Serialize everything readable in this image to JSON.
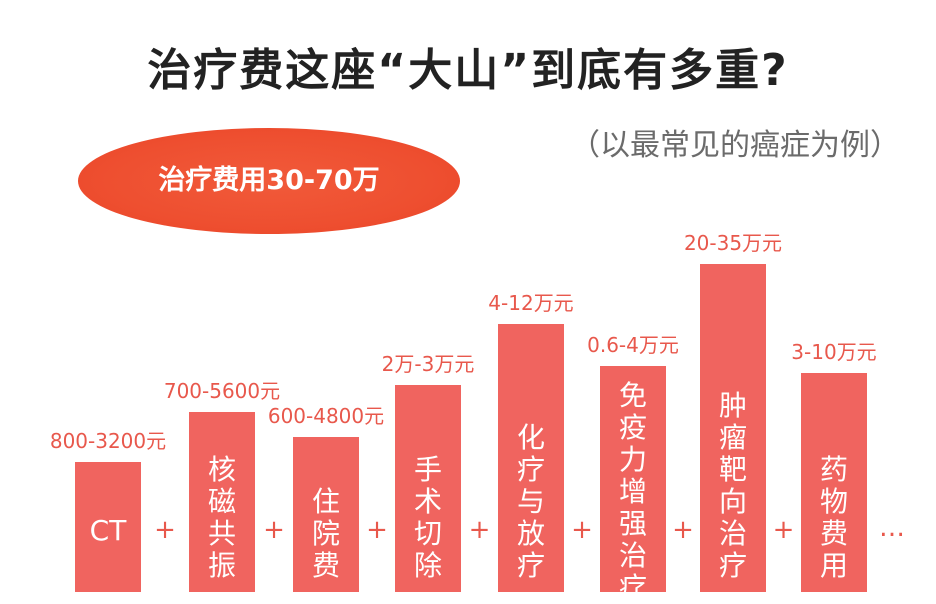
{
  "title": "治疗费这座“大山”到底有多重?",
  "subtitle": "（以最常见的癌症为例）",
  "badge": "治疗费用30-70万",
  "chart_data": {
    "type": "bar",
    "bar_color": "#f0645f",
    "label_color": "#e8584c",
    "operator_color": "#e8584c",
    "categories": [
      "CT",
      "核磁共振",
      "住院费",
      "手术切除",
      "化疗与放疗",
      "免疫力增强治疗",
      "肿瘤靶向治疗",
      "药物费用"
    ],
    "value_labels": [
      "800-3200元",
      "700-5600元",
      "600-4800元",
      "2万-3万元",
      "4-12万元",
      "0.6-4万元",
      "20-35万元",
      "3-10万元"
    ],
    "operator": "+",
    "trailing": "…"
  }
}
